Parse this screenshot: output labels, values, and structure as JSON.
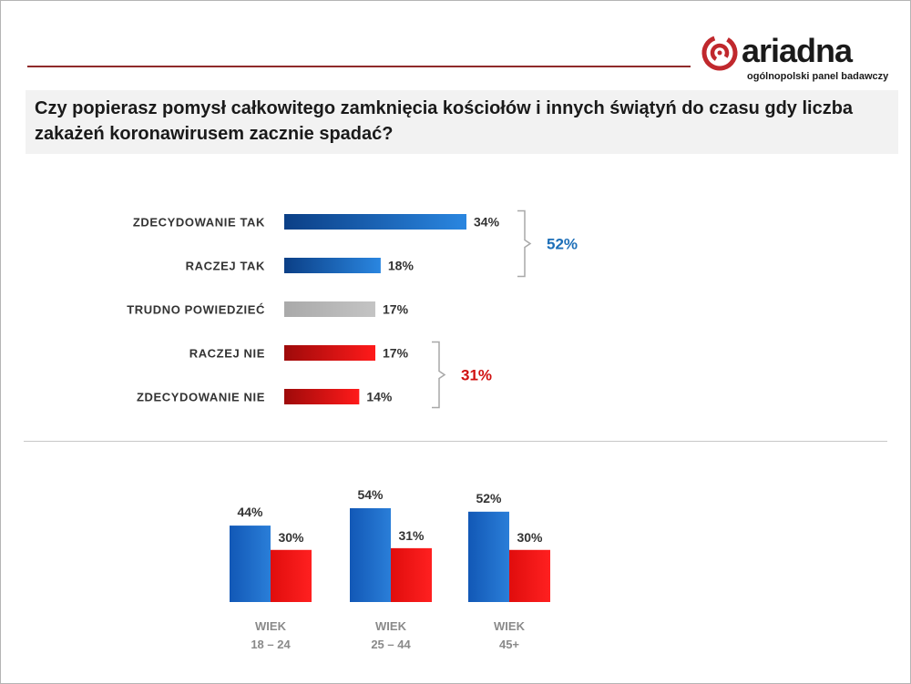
{
  "logo": {
    "wordmark": "ariadna",
    "tagline": "ogólnopolski panel badawczy"
  },
  "question": "Czy popierasz pomysł całkowitego zamknięcia kościołów i innych świątyń do czasu gdy liczba zakażeń koronawirusem zacznie spadać?",
  "colors": {
    "blue": "#1560bd",
    "red": "#e01010",
    "gray": "#b3b3b3",
    "accent_pos": "#1d6fb8",
    "accent_neg": "#d01010"
  },
  "chart_data": [
    {
      "type": "bar",
      "orientation": "horizontal",
      "categories": [
        "ZDECYDOWANIE  TAK",
        "RACZEJ TAK",
        "TRUDNO  POWIEDZIEĆ",
        "RACZEJ NIE",
        "ZDECYDOWANIE  NIE"
      ],
      "values": [
        34,
        18,
        17,
        17,
        14
      ],
      "value_labels": [
        "34%",
        "18%",
        "17%",
        "17%",
        "14%"
      ],
      "bar_colors": [
        "blue",
        "blue",
        "gray",
        "red",
        "red"
      ],
      "groups": [
        {
          "label": "52%",
          "from": 0,
          "to": 1,
          "tone": "positive"
        },
        {
          "label": "31%",
          "from": 3,
          "to": 4,
          "tone": "negative"
        }
      ]
    },
    {
      "type": "bar",
      "orientation": "vertical",
      "groups": [
        {
          "label_line1": "WIEK",
          "label_line2": "18 – 24",
          "positive": 44,
          "negative": 30,
          "positive_label": "44%",
          "negative_label": "30%"
        },
        {
          "label_line1": "WIEK",
          "label_line2": "25 – 44",
          "positive": 54,
          "negative": 31,
          "positive_label": "54%",
          "negative_label": "31%"
        },
        {
          "label_line1": "WIEK",
          "label_line2": "45+",
          "positive": 52,
          "negative": 30,
          "positive_label": "52%",
          "negative_label": "30%"
        }
      ],
      "series": [
        {
          "name": "positive",
          "color": "blue"
        },
        {
          "name": "negative",
          "color": "red"
        }
      ]
    }
  ]
}
